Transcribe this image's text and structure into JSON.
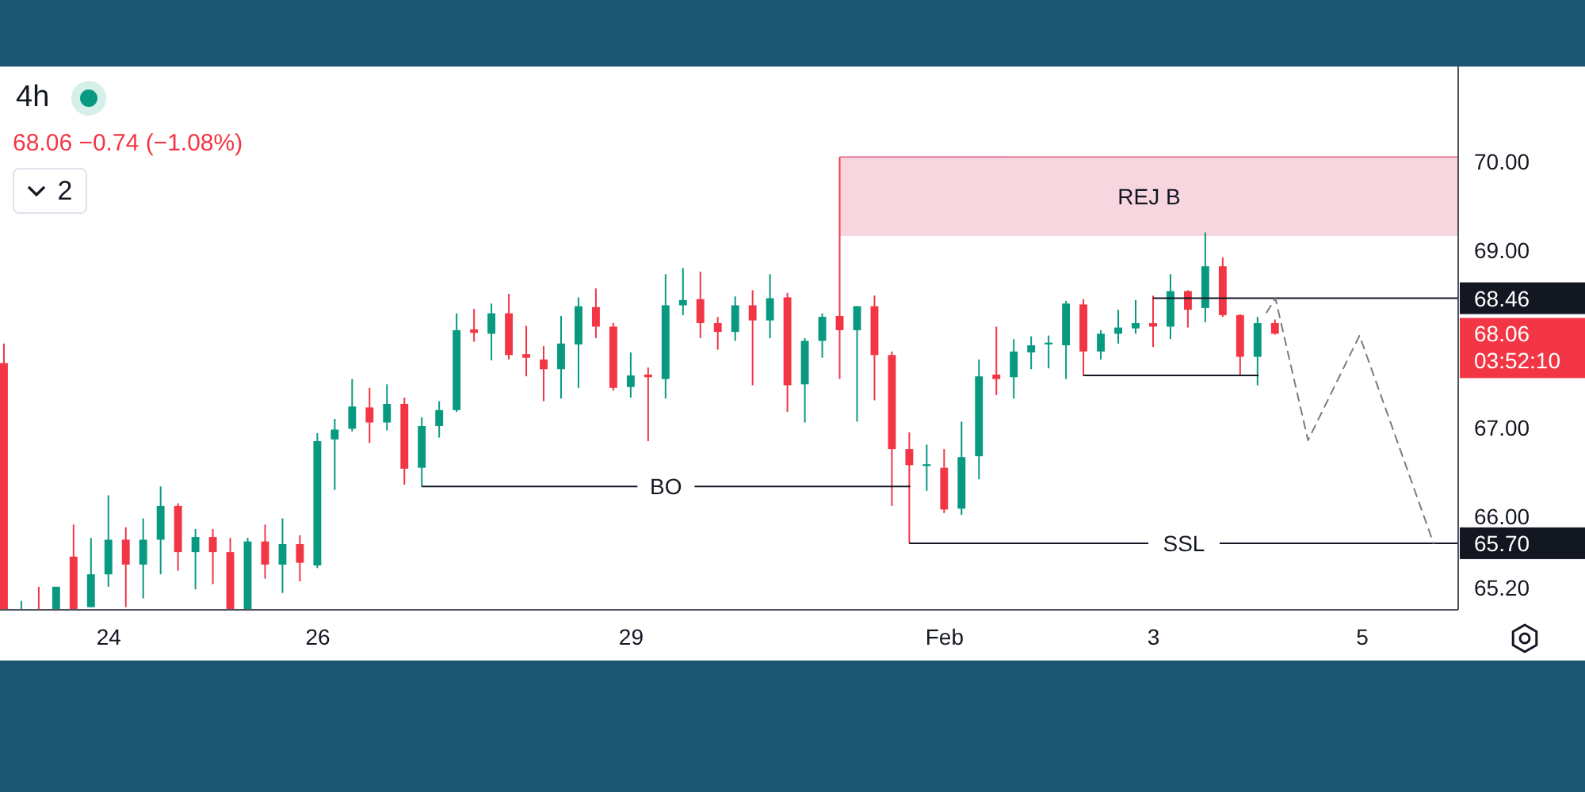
{
  "chart_data": {
    "type": "candlestick",
    "title": "4h",
    "subtitle": "68.06 −0.74 (−1.08%)",
    "x": [
      "--01-23T00:00",
      "--01-23T04:00",
      "--01-23T08:00",
      "--01-23T12:00",
      "--01-23T16:00",
      "--01-23T20:00",
      "--01-24T00:00",
      "--01-24T04:00",
      "--01-24T08:00",
      "--01-24T12:00",
      "--01-24T16:00",
      "--01-24T20:00",
      "--01-25T00:00",
      "--01-25T04:00",
      "--01-25T08:00",
      "--01-25T12:00",
      "--01-25T16:00",
      "--01-25T20:00",
      "--01-26T00:00",
      "--01-26T04:00",
      "--01-26T08:00",
      "--01-26T12:00",
      "--01-26T16:00",
      "--01-26T20:00",
      "--01-27T00:00",
      "--01-27T04:00",
      "--01-27T08:00",
      "--01-27T12:00",
      "--01-27T16:00",
      "--01-27T20:00",
      "--01-28T00:00",
      "--01-28T04:00",
      "--01-28T08:00",
      "--01-28T12:00",
      "--01-28T16:00",
      "--01-28T20:00",
      "--01-29T00:00",
      "--01-29T04:00",
      "--01-29T08:00",
      "--01-29T12:00",
      "--01-29T16:00",
      "--01-29T20:00",
      "--01-30T00:00",
      "--01-30T04:00",
      "--01-30T08:00",
      "--01-30T12:00",
      "--01-30T16:00",
      "--01-30T20:00",
      "--01-31T00:00",
      "--01-31T04:00",
      "--01-31T08:00",
      "--01-31T12:00",
      "--01-31T16:00",
      "--01-31T20:00",
      "--02-01T00:00",
      "--02-01T04:00",
      "--02-01T08:00",
      "--02-01T12:00",
      "--02-01T16:00",
      "--02-01T20:00",
      "--02-02T00:00",
      "--02-02T04:00",
      "--02-02T08:00",
      "--02-02T12:00",
      "--02-02T16:00",
      "--02-02T20:00",
      "--02-03T00:00",
      "--02-03T04:00",
      "--02-03T08:00",
      "--02-03T12:00",
      "--02-03T16:00",
      "--02-03T20:00",
      "--02-04T00:00",
      "--02-04T04:00"
    ],
    "ohlc": [
      [
        67.73,
        67.95,
        64.95,
        64.95
      ],
      [
        64.95,
        65.05,
        64.95,
        64.95
      ],
      [
        64.95,
        65.21,
        64.95,
        64.95
      ],
      [
        64.95,
        65.21,
        64.95,
        65.21
      ],
      [
        65.55,
        65.91,
        64.95,
        64.95
      ],
      [
        64.98,
        65.76,
        64.98,
        65.35
      ],
      [
        65.35,
        66.24,
        65.21,
        65.74
      ],
      [
        65.74,
        65.88,
        64.98,
        65.46
      ],
      [
        65.46,
        65.98,
        65.08,
        65.74
      ],
      [
        65.74,
        66.34,
        65.35,
        66.12
      ],
      [
        66.12,
        66.15,
        65.39,
        65.6
      ],
      [
        65.6,
        65.86,
        65.18,
        65.77
      ],
      [
        65.77,
        65.86,
        65.24,
        65.6
      ],
      [
        65.6,
        65.76,
        64.95,
        64.95
      ],
      [
        64.95,
        65.76,
        64.95,
        65.72
      ],
      [
        65.72,
        65.91,
        65.3,
        65.46
      ],
      [
        65.46,
        65.98,
        65.14,
        65.69
      ],
      [
        65.69,
        65.79,
        65.27,
        65.48
      ],
      [
        65.45,
        66.94,
        65.42,
        66.85
      ],
      [
        66.87,
        67.1,
        66.3,
        66.98
      ],
      [
        66.99,
        67.55,
        66.96,
        67.24
      ],
      [
        67.23,
        67.45,
        66.83,
        67.06
      ],
      [
        67.06,
        67.49,
        66.97,
        67.27
      ],
      [
        67.27,
        67.34,
        66.36,
        66.54
      ],
      [
        66.55,
        67.12,
        66.34,
        67.02
      ],
      [
        67.02,
        67.3,
        66.89,
        67.2
      ],
      [
        67.2,
        68.29,
        67.18,
        68.1
      ],
      [
        68.11,
        68.34,
        67.97,
        68.07
      ],
      [
        68.06,
        68.4,
        67.76,
        68.29
      ],
      [
        68.29,
        68.51,
        67.77,
        67.82
      ],
      [
        67.83,
        68.15,
        67.58,
        67.79
      ],
      [
        67.77,
        67.92,
        67.3,
        67.66
      ],
      [
        67.66,
        68.26,
        67.33,
        67.95
      ],
      [
        67.94,
        68.47,
        67.45,
        68.37
      ],
      [
        68.36,
        68.57,
        68.01,
        68.14
      ],
      [
        68.14,
        68.18,
        67.42,
        67.45
      ],
      [
        67.46,
        67.85,
        67.34,
        67.59
      ],
      [
        67.6,
        67.68,
        66.85,
        67.57
      ],
      [
        67.55,
        68.73,
        67.33,
        68.38
      ],
      [
        68.38,
        68.8,
        68.27,
        68.44
      ],
      [
        68.45,
        68.76,
        68.01,
        68.18
      ],
      [
        68.18,
        68.25,
        67.88,
        68.08
      ],
      [
        68.08,
        68.48,
        67.98,
        68.38
      ],
      [
        68.38,
        68.55,
        67.48,
        68.21
      ],
      [
        68.21,
        68.73,
        68.01,
        68.46
      ],
      [
        68.47,
        68.52,
        67.18,
        67.48
      ],
      [
        67.49,
        68.01,
        67.06,
        67.98
      ],
      [
        67.98,
        68.29,
        67.79,
        68.25
      ],
      [
        68.26,
        70.05,
        67.55,
        68.1
      ],
      [
        68.1,
        68.37,
        67.07,
        68.37
      ],
      [
        68.37,
        68.49,
        67.31,
        67.82
      ],
      [
        67.82,
        67.86,
        66.12,
        66.76
      ],
      [
        66.76,
        66.95,
        65.7,
        66.58
      ],
      [
        66.57,
        66.81,
        66.29,
        66.59
      ],
      [
        66.55,
        66.76,
        66.04,
        66.08
      ],
      [
        66.09,
        67.07,
        66.02,
        66.67
      ],
      [
        66.68,
        67.77,
        66.42,
        67.58
      ],
      [
        67.6,
        68.14,
        67.37,
        67.55
      ],
      [
        67.57,
        68.0,
        67.33,
        67.86
      ],
      [
        67.85,
        68.03,
        67.66,
        67.93
      ],
      [
        67.94,
        68.04,
        67.67,
        67.96
      ],
      [
        67.93,
        68.43,
        67.55,
        68.4
      ],
      [
        68.39,
        68.45,
        67.59,
        67.86
      ],
      [
        67.86,
        68.1,
        67.77,
        68.06
      ],
      [
        68.06,
        68.33,
        67.95,
        68.13
      ],
      [
        68.12,
        68.44,
        68.06,
        68.18
      ],
      [
        68.18,
        68.49,
        67.91,
        68.14
      ],
      [
        68.14,
        68.73,
        68.0,
        68.54
      ],
      [
        68.54,
        68.55,
        68.13,
        68.33
      ],
      [
        68.35,
        69.2,
        68.19,
        68.82
      ],
      [
        68.82,
        68.92,
        68.25,
        68.27
      ],
      [
        68.27,
        68.28,
        67.59,
        67.8
      ],
      [
        67.8,
        68.25,
        67.48,
        68.18
      ],
      [
        68.18,
        68.22,
        68.05,
        68.06
      ]
    ],
    "colors": [
      "#f23645",
      "#089981",
      "#f23645",
      "#089981",
      "#f23645",
      "#089981",
      "#089981",
      "#f23645",
      "#089981",
      "#089981",
      "#f23645",
      "#089981",
      "#f23645",
      "#f23645",
      "#089981",
      "#f23645",
      "#089981",
      "#f23645",
      "#089981",
      "#089981",
      "#089981",
      "#f23645",
      "#089981",
      "#f23645",
      "#089981",
      "#089981",
      "#089981",
      "#f23645",
      "#089981",
      "#f23645",
      "#f23645",
      "#f23645",
      "#089981",
      "#089981",
      "#f23645",
      "#f23645",
      "#089981",
      "#f23645",
      "#089981",
      "#089981",
      "#f23645",
      "#f23645",
      "#089981",
      "#f23645",
      "#089981",
      "#f23645",
      "#089981",
      "#089981",
      "#f23645",
      "#089981",
      "#f23645",
      "#f23645",
      "#f23645",
      "#089981",
      "#f23645",
      "#089981",
      "#089981",
      "#f23645",
      "#089981",
      "#089981",
      "#089981",
      "#089981",
      "#f23645",
      "#089981",
      "#089981",
      "#089981",
      "#f23645",
      "#089981",
      "#f23645",
      "#089981",
      "#f23645",
      "#f23645",
      "#089981",
      "#f23645"
    ],
    "series": [
      {
        "type": "line",
        "name": "REJ B",
        "color": "#e8809c",
        "x": [
          "--01-31T00:00",
          "--02-05T22:00"
        ],
        "values": [
          70.05,
          70.05
        ],
        "lower": [
          69.16,
          69.16
        ],
        "upper": [
          70.05,
          70.05
        ]
      },
      {
        "type": "line",
        "name": "BO",
        "color": "#131722",
        "x": [
          "--01-27T00:00",
          "--01-31T16:00"
        ],
        "values": [
          66.34,
          66.34
        ]
      },
      {
        "type": "line",
        "name": "SSL",
        "color": "#131722",
        "x": [
          "--01-31T16:00",
          "--02-05T22:00"
        ],
        "values": [
          65.7,
          65.7
        ],
        "value_labels": [
          null,
          "65.70"
        ]
      },
      {
        "type": "line",
        "color": "#131722",
        "x": [
          "--02-03T00:00",
          "--02-05T22:00"
        ],
        "values": [
          68.46,
          68.46
        ],
        "value_labels": [
          null,
          "68.46"
        ]
      },
      {
        "type": "line",
        "color": "#131722",
        "x": [
          "--02-02T08:00",
          "--02-04T00:00"
        ],
        "values": [
          67.59,
          67.59
        ]
      },
      {
        "type": "line",
        "color": "#787b86",
        "line_style": "dashed",
        "x": [
          "--02-04T02:00",
          "--02-04T04:00",
          "--02-04T11:30",
          "--02-04T23:20",
          "--02-05T16:20"
        ],
        "values": [
          68.3,
          68.46,
          66.86,
          68.04,
          65.7
        ]
      }
    ],
    "annotations": [
      "68.06\n03:52:10",
      "2"
    ],
    "xlim": [
      "--01-22T23:00",
      "--02-05T22:00"
    ],
    "xticks": [
      {
        "value": "--01-24",
        "label": "24"
      },
      {
        "value": "--01-26",
        "label": "26"
      },
      {
        "value": "--01-29",
        "label": "29"
      },
      {
        "value": "--02-01",
        "label": "Feb"
      },
      {
        "value": "--02-03",
        "label": "3"
      },
      {
        "value": "--02-05",
        "label": "5"
      }
    ],
    "ylim": [
      64.95,
      71.07
    ],
    "yticks": [
      {
        "value": 70,
        "label": "70.00"
      },
      {
        "value": 69,
        "label": "69.00"
      },
      {
        "value": 67,
        "label": "67.00"
      },
      {
        "value": 66,
        "label": "66.00"
      },
      {
        "value": 65.2,
        "label": "65.20"
      }
    ]
  }
}
